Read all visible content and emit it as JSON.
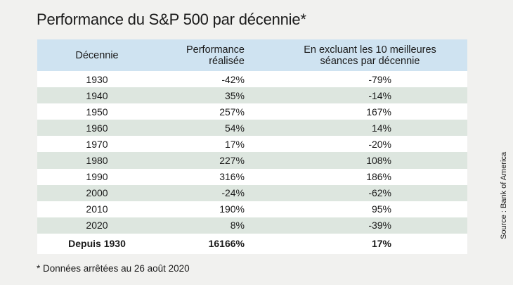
{
  "title": "Performance du S&P 500 par décennie*",
  "footnote": "* Données arrêtées au 26 août 2020",
  "source": "Source : Bank of America",
  "chart_data": {
    "type": "table",
    "columns": [
      "Décennie",
      "Performance réalisée",
      "En excluant les 10 meilleures séances par décennie"
    ],
    "rows": [
      {
        "decade": "1930",
        "performance": "-42%",
        "excluding": "-79%"
      },
      {
        "decade": "1940",
        "performance": "35%",
        "excluding": "-14%"
      },
      {
        "decade": "1950",
        "performance": "257%",
        "excluding": "167%"
      },
      {
        "decade": "1960",
        "performance": "54%",
        "excluding": "14%"
      },
      {
        "decade": "1970",
        "performance": "17%",
        "excluding": "-20%"
      },
      {
        "decade": "1980",
        "performance": "227%",
        "excluding": "108%"
      },
      {
        "decade": "1990",
        "performance": "316%",
        "excluding": "186%"
      },
      {
        "decade": "2000",
        "performance": "-24%",
        "excluding": "-62%"
      },
      {
        "decade": "2010",
        "performance": "190%",
        "excluding": "95%"
      },
      {
        "decade": "2020",
        "performance": "8%",
        "excluding": "-39%"
      }
    ],
    "total": {
      "label": "Depuis 1930",
      "performance": "16166%",
      "excluding": "17%"
    },
    "colors": {
      "header": "#cfe3f1",
      "row_odd": "#ffffff",
      "row_even": "#dde6df",
      "background": "#f1f1ef"
    }
  }
}
